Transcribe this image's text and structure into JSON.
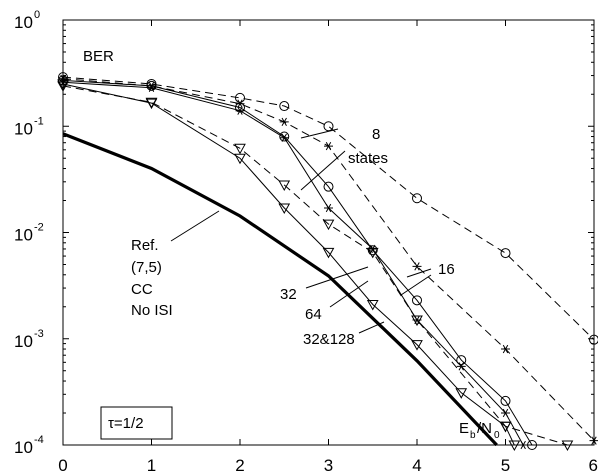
{
  "chart_data": {
    "type": "line",
    "title": "",
    "xlabel": "E_b/N_0",
    "ylabel": "BER",
    "xlim": [
      0,
      6
    ],
    "ylim": [
      0.0001,
      1
    ],
    "yscale": "log",
    "grid": false,
    "x_ticks": [
      "0",
      "1",
      "2",
      "3",
      "4",
      "5",
      "6"
    ],
    "y_ticks": [
      {
        "base": "10",
        "exp": "0"
      },
      {
        "base": "10",
        "exp": "-1"
      },
      {
        "base": "10",
        "exp": "-2"
      },
      {
        "base": "10",
        "exp": "-3"
      },
      {
        "base": "10",
        "exp": "-4"
      }
    ],
    "series": [
      {
        "style": "solid-thick",
        "marker": "none",
        "x": [
          0,
          1,
          2,
          3,
          4,
          4.9
        ],
        "y": [
          0.085,
          0.04,
          0.0143,
          0.0039,
          0.00062,
          0.0001
        ]
      },
      {
        "style": "dashed",
        "marker": "circle",
        "x": [
          0,
          1,
          2,
          2.5,
          3,
          4,
          5,
          6
        ],
        "y": [
          0.29,
          0.25,
          0.185,
          0.155,
          0.1,
          0.021,
          0.0064,
          0.00098
        ]
      },
      {
        "style": "dashed",
        "marker": "star",
        "x": [
          0,
          1,
          2,
          2.5,
          3,
          4,
          5,
          6
        ],
        "y": [
          0.28,
          0.24,
          0.163,
          0.11,
          0.065,
          0.0048,
          0.0008,
          0.00011
        ]
      },
      {
        "style": "dashed",
        "marker": "triangle",
        "x": [
          0,
          1,
          2,
          2.5,
          3,
          3.5,
          4,
          5,
          5.7
        ],
        "y": [
          0.24,
          0.168,
          0.062,
          0.028,
          0.012,
          0.0065,
          0.0015,
          0.00015,
          0.0001
        ]
      },
      {
        "style": "solid",
        "marker": "circle",
        "x": [
          0,
          1,
          2,
          2.5,
          3,
          3.5,
          4,
          4.5,
          5,
          5.3
        ],
        "y": [
          0.27,
          0.24,
          0.15,
          0.08,
          0.027,
          0.0068,
          0.0023,
          0.00063,
          0.00026,
          0.0001
        ]
      },
      {
        "style": "solid",
        "marker": "star",
        "x": [
          0,
          1,
          2,
          2.5,
          3,
          3.5,
          4,
          4.5,
          5,
          5.2
        ],
        "y": [
          0.26,
          0.23,
          0.14,
          0.078,
          0.017,
          0.007,
          0.0015,
          0.00055,
          0.0002,
          0.0001
        ]
      },
      {
        "style": "solid",
        "marker": "triangle",
        "x": [
          0,
          1,
          2,
          2.5,
          3,
          3.5,
          4,
          4.5,
          5,
          5.1
        ],
        "y": [
          0.25,
          0.165,
          0.05,
          0.017,
          0.0065,
          0.0021,
          0.00088,
          0.00031,
          0.00015,
          0.0001
        ]
      }
    ],
    "annotations": {
      "states": [
        "8",
        "states"
      ],
      "ref": [
        "Ref.",
        "(7,5)",
        "CC",
        "No ISI"
      ],
      "n16": "16",
      "n32": "32",
      "n64": "64",
      "n32_128": "32&128",
      "tau": "τ=1/2",
      "eb": "E",
      "eb_sub": "b",
      "slash": "/N",
      "n0_sub": "0"
    }
  }
}
